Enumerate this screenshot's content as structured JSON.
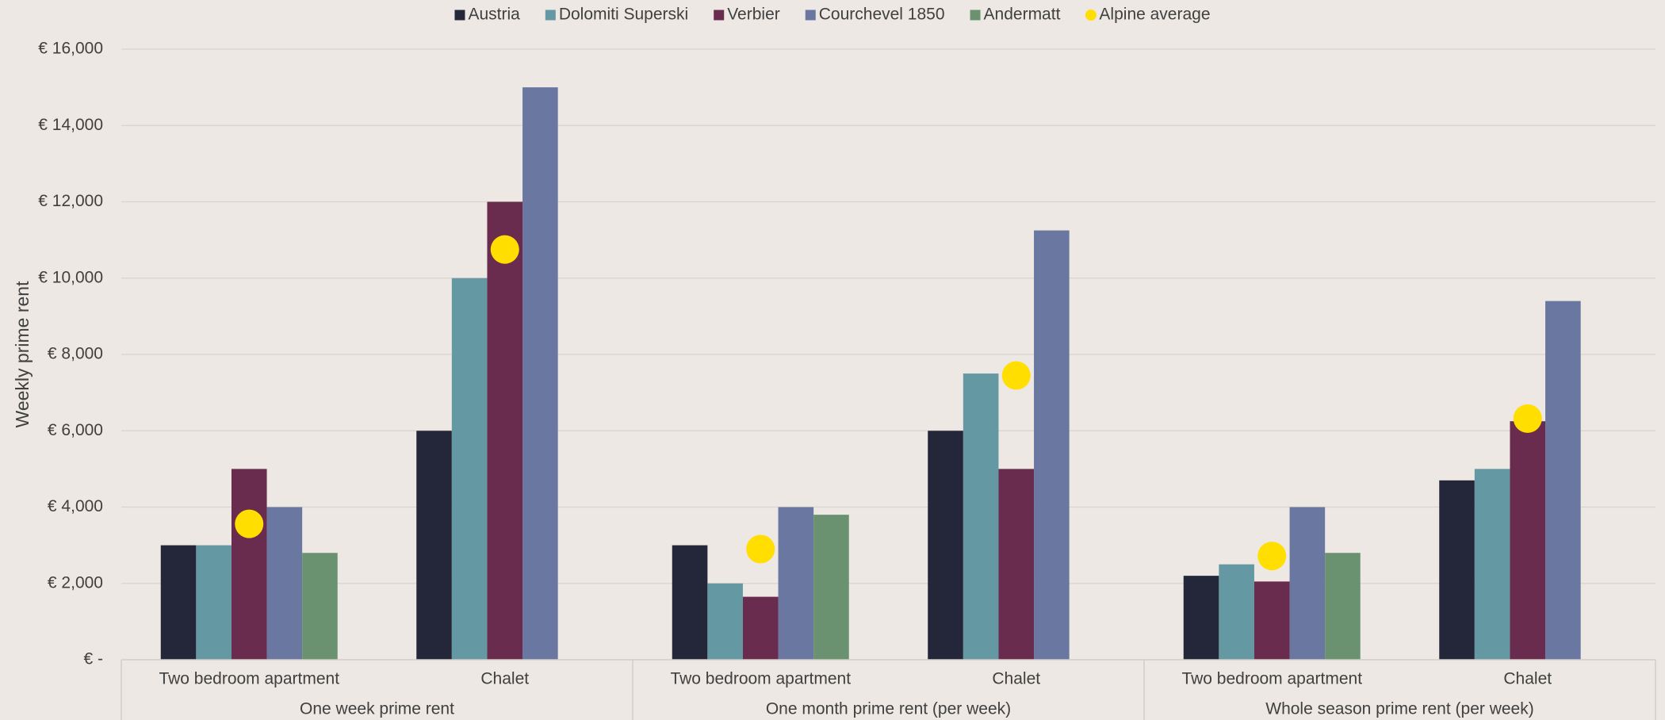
{
  "chart_data": {
    "type": "bar",
    "ylabel": "Weekly prime rent",
    "ylim": [
      0,
      16000
    ],
    "yticks": [
      {
        "value": 0,
        "label": "€ -"
      },
      {
        "value": 2000,
        "label": "€ 2,000"
      },
      {
        "value": 4000,
        "label": "€ 4,000"
      },
      {
        "value": 6000,
        "label": "€ 6,000"
      },
      {
        "value": 8000,
        "label": "€ 8,000"
      },
      {
        "value": 10000,
        "label": "€ 10,000"
      },
      {
        "value": 12000,
        "label": "€ 12,000"
      },
      {
        "value": 14000,
        "label": "€ 14,000"
      },
      {
        "value": 16000,
        "label": "€ 16,000"
      }
    ],
    "grid": true,
    "legend_position": "top",
    "groups": [
      {
        "label": "One week prime rent",
        "categories": [
          "Two bedroom apartment",
          "Chalet"
        ]
      },
      {
        "label": "One month prime rent (per week)",
        "categories": [
          "Two bedroom apartment",
          "Chalet"
        ]
      },
      {
        "label": "Whole season prime rent (per week)",
        "categories": [
          "Two bedroom apartment",
          "Chalet"
        ]
      }
    ],
    "series": [
      {
        "name": "Austria",
        "kind": "bar",
        "color": "#24273a",
        "values": [
          3000,
          6000,
          3000,
          6000,
          2200,
          4700
        ]
      },
      {
        "name": "Dolomiti Superski",
        "kind": "bar",
        "color": "#6499a3",
        "values": [
          3000,
          10000,
          2000,
          7500,
          2500,
          5000
        ]
      },
      {
        "name": "Verbier",
        "kind": "bar",
        "color": "#6a2c4e",
        "values": [
          5000,
          12000,
          1650,
          5000,
          2050,
          6250
        ]
      },
      {
        "name": "Courchevel 1850",
        "kind": "bar",
        "color": "#6a77a1",
        "values": [
          4000,
          15000,
          4000,
          11250,
          4000,
          9400
        ]
      },
      {
        "name": "Andermatt",
        "kind": "bar",
        "color": "#6b9270",
        "values": [
          2800,
          null,
          3800,
          null,
          2800,
          null
        ]
      },
      {
        "name": "Alpine average",
        "kind": "marker",
        "color": "#ffde00",
        "values": [
          3560,
          10750,
          2900,
          7450,
          2720,
          6320
        ]
      }
    ]
  }
}
